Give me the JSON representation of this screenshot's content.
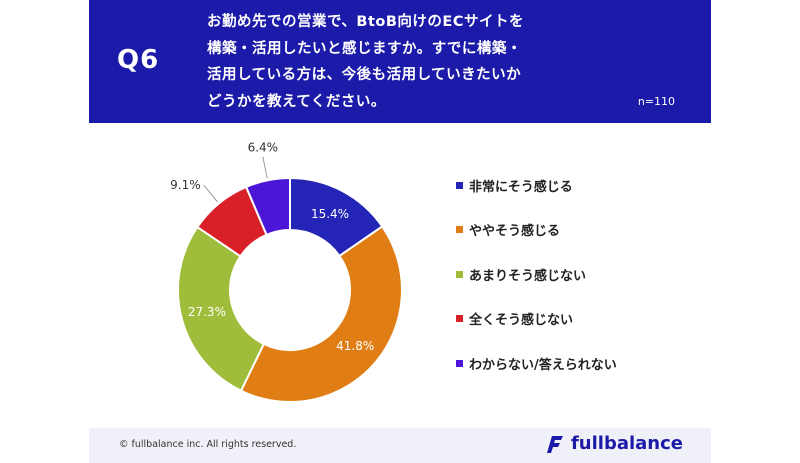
{
  "header": {
    "qnum": "Q6",
    "question_lines": [
      "お勤め先での営業で、BtoB向けのECサイトを",
      "構築・活用したいと感じますか。すでに構築・",
      "活用している方は、今後も活用していきたいか",
      "どうかを教えてください。"
    ],
    "n_label": "n=110"
  },
  "chart_data": {
    "type": "pie",
    "donut": true,
    "categories": [
      "非常にそう感じる",
      "ややそう感じる",
      "あまりそう感じない",
      "全くそう感じない",
      "わからない/答えられない"
    ],
    "values": [
      15.4,
      41.8,
      27.3,
      9.1,
      6.4
    ],
    "labels": [
      "15.4%",
      "41.8%",
      "27.3%",
      "9.1%",
      "6.4%"
    ],
    "colors": [
      "#2424b6",
      "#e07e15",
      "#9fbd3a",
      "#d92028",
      "#4b16d6"
    ],
    "legend_position": "right"
  },
  "footer": {
    "copyright": "© fullbalance inc. All rights reserved.",
    "logo_text": "fullbalance"
  }
}
